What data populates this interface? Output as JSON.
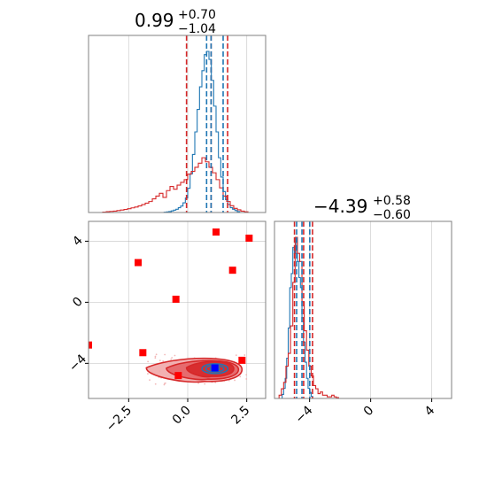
{
  "colors": {
    "blue": "#1f77b4",
    "red": "#d62728",
    "marker_red": "#ff0000",
    "marker_blue": "#0000ff"
  },
  "chart_data": [
    {
      "panel": "top-left",
      "type": "histogram",
      "title": {
        "value": "0.99",
        "plus": "+0.70",
        "minus": "−1.04"
      },
      "xlim": [
        -4.2,
        3.3
      ],
      "grid": true,
      "quantile_lines": {
        "blue": [
          0.8,
          0.99,
          1.5
        ],
        "red": [
          -0.05,
          0.99,
          1.69
        ]
      },
      "series": [
        {
          "color": "blue",
          "x_start": -1.0,
          "bin": 0.1,
          "counts": [
            0.002,
            0.004,
            0.006,
            0.01,
            0.015,
            0.02,
            0.03,
            0.04,
            0.06,
            0.09,
            0.15,
            0.24,
            0.36,
            0.5,
            0.64,
            0.78,
            0.88,
            0.98,
            1.0,
            0.95,
            0.82,
            0.66,
            0.5,
            0.34,
            0.22,
            0.13,
            0.08,
            0.05,
            0.03,
            0.02,
            0.012,
            0.006
          ]
        },
        {
          "color": "red",
          "x_start": -3.6,
          "bin": 0.15,
          "counts": [
            0.003,
            0.006,
            0.008,
            0.01,
            0.014,
            0.018,
            0.022,
            0.028,
            0.034,
            0.04,
            0.048,
            0.058,
            0.068,
            0.08,
            0.1,
            0.12,
            0.14,
            0.11,
            0.16,
            0.19,
            0.17,
            0.2,
            0.22,
            0.24,
            0.28,
            0.3,
            0.33,
            0.36,
            0.4,
            0.37,
            0.33,
            0.29,
            0.24,
            0.18,
            0.12,
            0.08,
            0.05,
            0.03,
            0.02,
            0.01,
            0.005
          ]
        }
      ]
    },
    {
      "panel": "bottom-left",
      "type": "scatter",
      "xlim": [
        -4.2,
        3.3
      ],
      "ylim": [
        -6.3,
        5.3
      ],
      "x_ticks": [
        -2.5,
        0.0,
        2.5
      ],
      "x_tick_labels": [
        "−2.5",
        "0.0",
        "2.5"
      ],
      "y_ticks": [
        -4,
        0,
        4
      ],
      "y_tick_labels": [
        "−4",
        "0",
        "4"
      ],
      "grid": true,
      "red_markers": [
        [
          -4.2,
          -2.8
        ],
        [
          -2.1,
          2.6
        ],
        [
          -1.9,
          -3.3
        ],
        [
          -0.5,
          0.2
        ],
        [
          -0.4,
          -4.8
        ],
        [
          1.2,
          4.6
        ],
        [
          1.9,
          2.1
        ],
        [
          2.3,
          -3.8
        ],
        [
          2.6,
          4.2
        ]
      ],
      "blue_marker": [
        1.15,
        -4.3
      ],
      "contours": {
        "red": [
          {
            "cx": 0.7,
            "cy": -4.4,
            "rx": 1.6,
            "ry": 0.75,
            "left_extra": 0.85
          },
          {
            "cx": 0.85,
            "cy": -4.4,
            "rx": 1.3,
            "ry": 0.6,
            "left_extra": 0.45
          },
          {
            "cx": 1.0,
            "cy": -4.35,
            "rx": 0.95,
            "ry": 0.48,
            "left_extra": 0.1
          }
        ],
        "blue": [
          {
            "cx": 1.15,
            "cy": -4.35,
            "rx": 0.55,
            "ry": 0.32
          },
          {
            "cx": 1.15,
            "cy": -4.35,
            "rx": 0.38,
            "ry": 0.22
          },
          {
            "cx": 1.15,
            "cy": -4.35,
            "rx": 0.2,
            "ry": 0.12
          }
        ]
      }
    },
    {
      "panel": "bottom-right",
      "type": "histogram",
      "title": {
        "value": "−4.39",
        "plus": "+0.58",
        "minus": "−0.60"
      },
      "xlim": [
        -6.3,
        5.3
      ],
      "x_ticks": [
        -4,
        0,
        4
      ],
      "x_tick_labels": [
        "−4",
        "0",
        "4"
      ],
      "grid": true,
      "quantile_lines": {
        "blue": [
          -4.85,
          -4.5,
          -3.99
        ],
        "red": [
          -4.99,
          -4.39,
          -3.81
        ]
      },
      "series": [
        {
          "color": "blue",
          "x_start": -5.8,
          "bin": 0.1,
          "counts": [
            0.02,
            0.05,
            0.1,
            0.2,
            0.35,
            0.55,
            0.62,
            0.75,
            0.72,
            0.8,
            0.68,
            0.6,
            0.55,
            0.4,
            0.28,
            0.18,
            0.1,
            0.05,
            0.03,
            0.01
          ]
        },
        {
          "color": "red",
          "x_start": -6.0,
          "bin": 0.15,
          "counts": [
            0.02,
            0.06,
            0.1,
            0.2,
            0.28,
            0.45,
            0.72,
            1.0,
            0.9,
            0.85,
            0.6,
            0.42,
            0.3,
            0.2,
            0.14,
            0.08,
            0.06,
            0.03,
            0.04,
            0.02,
            0.02,
            0.01,
            0.01,
            0.02,
            0.01,
            0.005
          ]
        }
      ]
    }
  ]
}
